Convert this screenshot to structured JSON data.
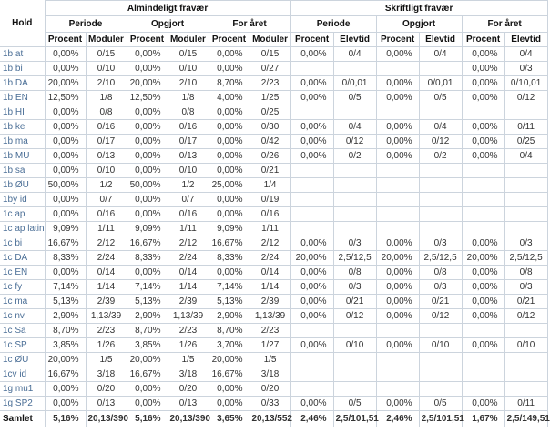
{
  "table": {
    "hold_header": "Hold",
    "group_headers": [
      "Almindeligt fravær",
      "Skriftligt fravær"
    ],
    "subgroup_headers": [
      "Periode",
      "Opgjort",
      "For året",
      "Periode",
      "Opgjort",
      "For året"
    ],
    "col_headers": [
      "Procent",
      "Moduler",
      "Procent",
      "Moduler",
      "Procent",
      "Moduler",
      "Procent",
      "Elevtid",
      "Procent",
      "Elevtid",
      "Procent",
      "Elevtid"
    ],
    "rows": [
      {
        "hold": "1b at",
        "cells": [
          "0,00%",
          "0/15",
          "0,00%",
          "0/15",
          "0,00%",
          "0/15",
          "0,00%",
          "0/4",
          "0,00%",
          "0/4",
          "0,00%",
          "0/4"
        ]
      },
      {
        "hold": "1b bi",
        "cells": [
          "0,00%",
          "0/10",
          "0,00%",
          "0/10",
          "0,00%",
          "0/27",
          "",
          "",
          "",
          "",
          "0,00%",
          "0/3"
        ]
      },
      {
        "hold": "1b DA",
        "cells": [
          "20,00%",
          "2/10",
          "20,00%",
          "2/10",
          "8,70%",
          "2/23",
          "0,00%",
          "0/0,01",
          "0,00%",
          "0/0,01",
          "0,00%",
          "0/10,01"
        ]
      },
      {
        "hold": "1b EN",
        "cells": [
          "12,50%",
          "1/8",
          "12,50%",
          "1/8",
          "4,00%",
          "1/25",
          "0,00%",
          "0/5",
          "0,00%",
          "0/5",
          "0,00%",
          "0/12"
        ]
      },
      {
        "hold": "1b HI",
        "cells": [
          "0,00%",
          "0/8",
          "0,00%",
          "0/8",
          "0,00%",
          "0/25",
          "",
          "",
          "",
          "",
          "",
          ""
        ]
      },
      {
        "hold": "1b ke",
        "cells": [
          "0,00%",
          "0/16",
          "0,00%",
          "0/16",
          "0,00%",
          "0/30",
          "0,00%",
          "0/4",
          "0,00%",
          "0/4",
          "0,00%",
          "0/11"
        ]
      },
      {
        "hold": "1b ma",
        "cells": [
          "0,00%",
          "0/17",
          "0,00%",
          "0/17",
          "0,00%",
          "0/42",
          "0,00%",
          "0/12",
          "0,00%",
          "0/12",
          "0,00%",
          "0/25"
        ]
      },
      {
        "hold": "1b MU",
        "cells": [
          "0,00%",
          "0/13",
          "0,00%",
          "0/13",
          "0,00%",
          "0/26",
          "0,00%",
          "0/2",
          "0,00%",
          "0/2",
          "0,00%",
          "0/4"
        ]
      },
      {
        "hold": "1b sa",
        "cells": [
          "0,00%",
          "0/10",
          "0,00%",
          "0/10",
          "0,00%",
          "0/21",
          "",
          "",
          "",
          "",
          "",
          ""
        ]
      },
      {
        "hold": "1b ØU",
        "cells": [
          "50,00%",
          "1/2",
          "50,00%",
          "1/2",
          "25,00%",
          "1/4",
          "",
          "",
          "",
          "",
          "",
          ""
        ]
      },
      {
        "hold": "1by id",
        "cells": [
          "0,00%",
          "0/7",
          "0,00%",
          "0/7",
          "0,00%",
          "0/19",
          "",
          "",
          "",
          "",
          "",
          ""
        ]
      },
      {
        "hold": "1c ap",
        "cells": [
          "0,00%",
          "0/16",
          "0,00%",
          "0/16",
          "0,00%",
          "0/16",
          "",
          "",
          "",
          "",
          "",
          ""
        ]
      },
      {
        "hold": "1c ap latin",
        "cells": [
          "9,09%",
          "1/11",
          "9,09%",
          "1/11",
          "9,09%",
          "1/11",
          "",
          "",
          "",
          "",
          "",
          ""
        ]
      },
      {
        "hold": "1c bi",
        "cells": [
          "16,67%",
          "2/12",
          "16,67%",
          "2/12",
          "16,67%",
          "2/12",
          "0,00%",
          "0/3",
          "0,00%",
          "0/3",
          "0,00%",
          "0/3"
        ]
      },
      {
        "hold": "1c DA",
        "cells": [
          "8,33%",
          "2/24",
          "8,33%",
          "2/24",
          "8,33%",
          "2/24",
          "20,00%",
          "2,5/12,5",
          "20,00%",
          "2,5/12,5",
          "20,00%",
          "2,5/12,5"
        ]
      },
      {
        "hold": "1c EN",
        "cells": [
          "0,00%",
          "0/14",
          "0,00%",
          "0/14",
          "0,00%",
          "0/14",
          "0,00%",
          "0/8",
          "0,00%",
          "0/8",
          "0,00%",
          "0/8"
        ]
      },
      {
        "hold": "1c fy",
        "cells": [
          "7,14%",
          "1/14",
          "7,14%",
          "1/14",
          "7,14%",
          "1/14",
          "0,00%",
          "0/3",
          "0,00%",
          "0/3",
          "0,00%",
          "0/3"
        ]
      },
      {
        "hold": "1c ma",
        "cells": [
          "5,13%",
          "2/39",
          "5,13%",
          "2/39",
          "5,13%",
          "2/39",
          "0,00%",
          "0/21",
          "0,00%",
          "0/21",
          "0,00%",
          "0/21"
        ]
      },
      {
        "hold": "1c nv",
        "cells": [
          "2,90%",
          "1,13/39",
          "2,90%",
          "1,13/39",
          "2,90%",
          "1,13/39",
          "0,00%",
          "0/12",
          "0,00%",
          "0/12",
          "0,00%",
          "0/12"
        ]
      },
      {
        "hold": "1c Sa",
        "cells": [
          "8,70%",
          "2/23",
          "8,70%",
          "2/23",
          "8,70%",
          "2/23",
          "",
          "",
          "",
          "",
          "",
          ""
        ]
      },
      {
        "hold": "1c SP",
        "cells": [
          "3,85%",
          "1/26",
          "3,85%",
          "1/26",
          "3,70%",
          "1/27",
          "0,00%",
          "0/10",
          "0,00%",
          "0/10",
          "0,00%",
          "0/10"
        ]
      },
      {
        "hold": "1c ØU",
        "cells": [
          "20,00%",
          "1/5",
          "20,00%",
          "1/5",
          "20,00%",
          "1/5",
          "",
          "",
          "",
          "",
          "",
          ""
        ]
      },
      {
        "hold": "1cv id",
        "cells": [
          "16,67%",
          "3/18",
          "16,67%",
          "3/18",
          "16,67%",
          "3/18",
          "",
          "",
          "",
          "",
          "",
          ""
        ]
      },
      {
        "hold": "1g mu1",
        "cells": [
          "0,00%",
          "0/20",
          "0,00%",
          "0/20",
          "0,00%",
          "0/20",
          "",
          "",
          "",
          "",
          "",
          ""
        ]
      },
      {
        "hold": "1g SP2",
        "cells": [
          "0,00%",
          "0/13",
          "0,00%",
          "0/13",
          "0,00%",
          "0/33",
          "0,00%",
          "0/5",
          "0,00%",
          "0/5",
          "0,00%",
          "0/11"
        ]
      }
    ],
    "total_row": {
      "hold": "Samlet",
      "cells": [
        "5,16%",
        "20,13/390",
        "5,16%",
        "20,13/390",
        "3,65%",
        "20,13/552",
        "2,46%",
        "2,5/101,51",
        "2,46%",
        "2,5/101,51",
        "1,67%",
        "2,5/149,51"
      ]
    }
  },
  "colors": {
    "row_label_link": "#4a6e96",
    "value_text": "#333333",
    "header_text": "#111111",
    "grid_border": "#ccd4dd",
    "background": "#ffffff"
  }
}
